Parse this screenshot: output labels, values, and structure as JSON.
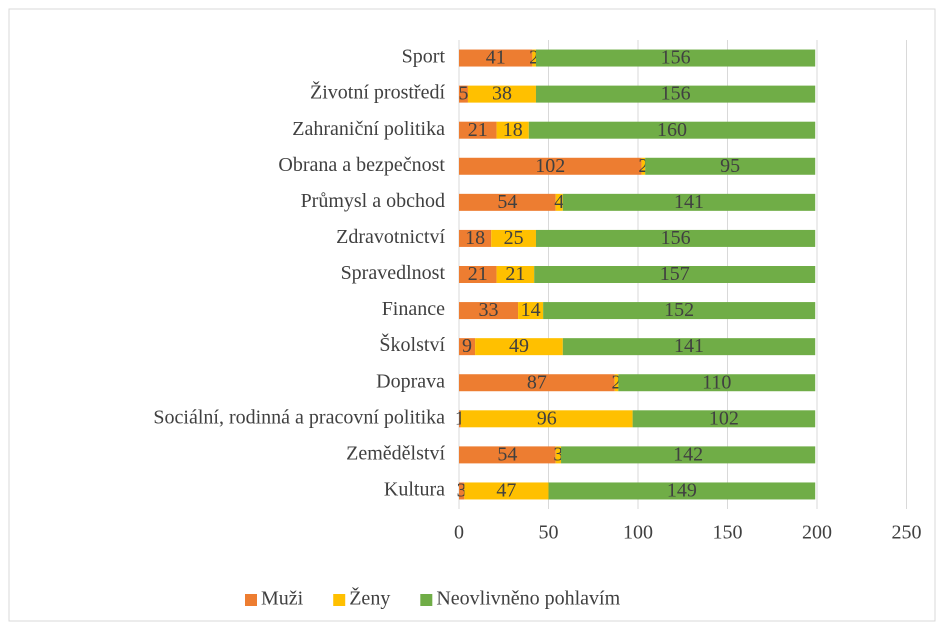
{
  "chart_data": {
    "type": "stacked-bar-horizontal",
    "categories": [
      "Sport",
      "Životní prostředí",
      "Zahraniční politika",
      "Obrana a bezpečnost",
      "Průmysl a obchod",
      "Zdravotnictví",
      "Spravedlnost",
      "Finance",
      "Školství",
      "Doprava",
      "Sociální, rodinná a pracovní politika",
      "Zemědělství",
      "Kultura"
    ],
    "series": [
      {
        "name": "Muži",
        "color": "#ed7d31",
        "values": [
          41,
          5,
          21,
          102,
          54,
          18,
          21,
          33,
          9,
          87,
          1,
          54,
          3
        ]
      },
      {
        "name": "Ženy",
        "color": "#ffc000",
        "values": [
          2,
          38,
          18,
          2,
          4,
          25,
          21,
          14,
          49,
          2,
          96,
          3,
          47
        ]
      },
      {
        "name": "Neovlivněno pohlavím",
        "color": "#70ad47",
        "values": [
          156,
          156,
          160,
          95,
          141,
          156,
          157,
          152,
          141,
          110,
          102,
          142,
          149
        ]
      }
    ],
    "xlim": [
      0,
      250
    ],
    "xticks": [
      0,
      50,
      100,
      150,
      200,
      250
    ],
    "grid": true,
    "legend": "bottom"
  }
}
